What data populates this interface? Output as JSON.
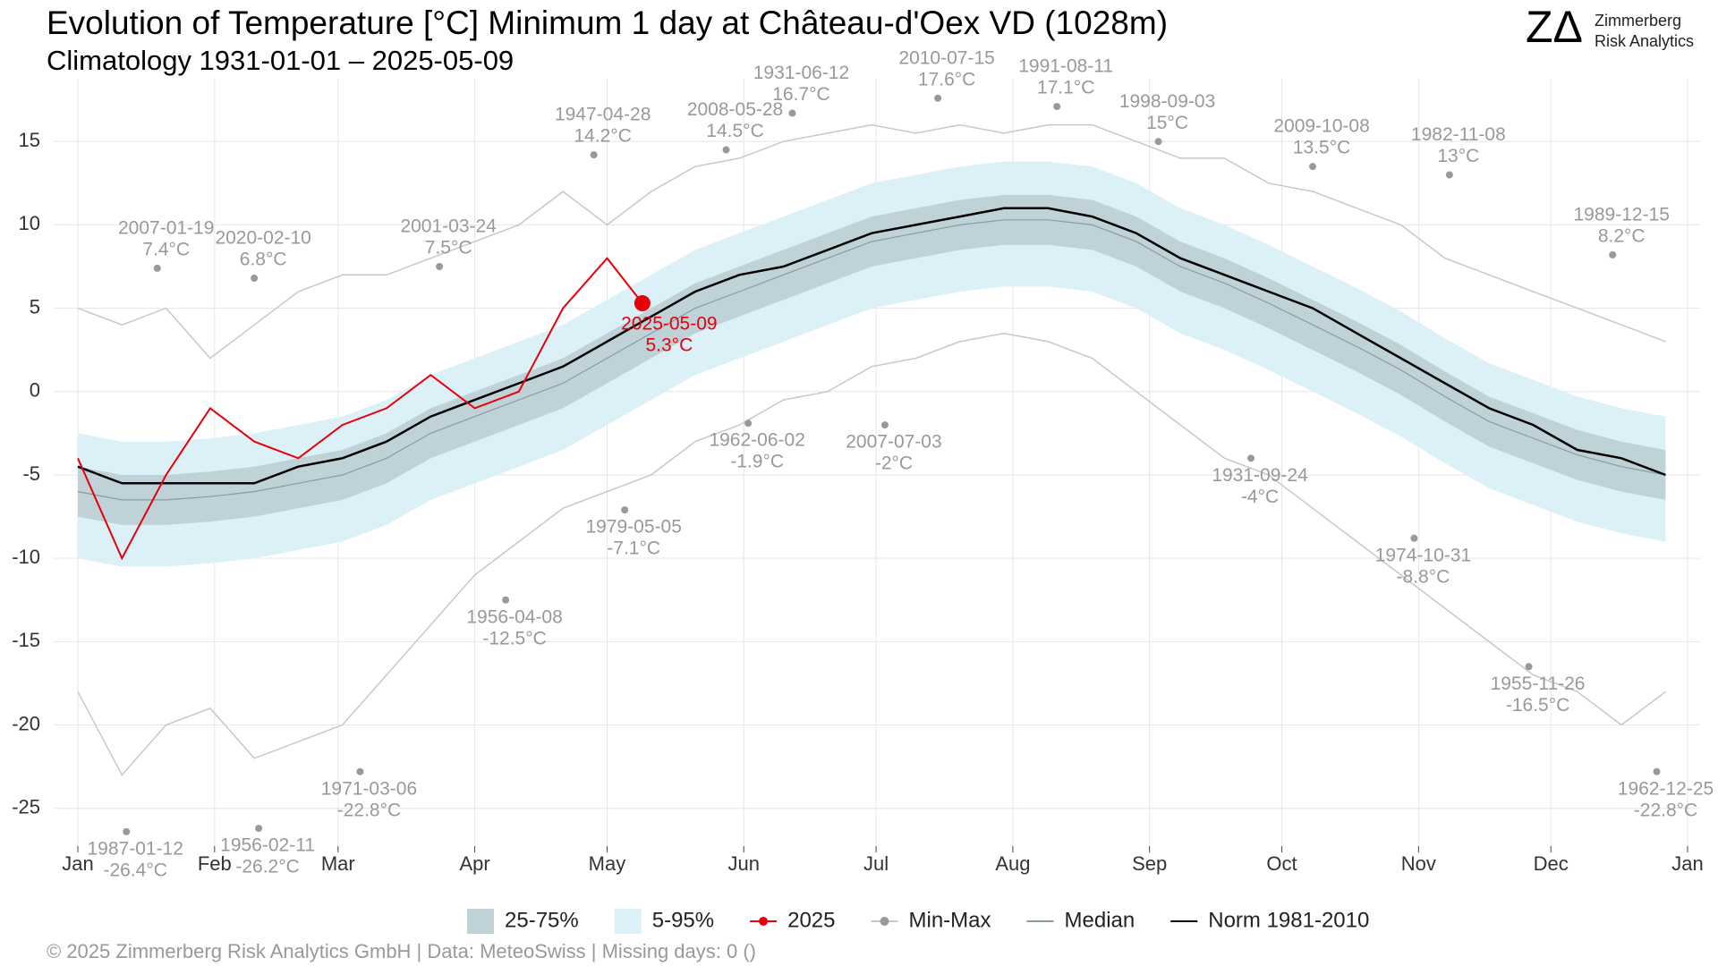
{
  "chart_data": {
    "type": "climatology",
    "title": "Evolution of Temperature [°C] Minimum 1 day at Château-d'Oex  VD (1028m)",
    "subtitle": "Climatology 1931-01-01 – 2025-05-09",
    "logo": {
      "mark": "ZΔ",
      "line1": "Zimmerberg",
      "line2": "Risk Analytics"
    },
    "footer": "©  2025 Zimmerberg Risk Analytics GmbH | Data: MeteoSwiss | Missing days: 0 ()",
    "xlim": [
      1,
      366
    ],
    "xticks": [
      {
        "value": 1,
        "label": "Jan"
      },
      {
        "value": 32,
        "label": "Feb"
      },
      {
        "value": 60,
        "label": "Mar"
      },
      {
        "value": 91,
        "label": "Apr"
      },
      {
        "value": 121,
        "label": "May"
      },
      {
        "value": 152,
        "label": "Jun"
      },
      {
        "value": 182,
        "label": "Jul"
      },
      {
        "value": 213,
        "label": "Aug"
      },
      {
        "value": 244,
        "label": "Sep"
      },
      {
        "value": 274,
        "label": "Oct"
      },
      {
        "value": 305,
        "label": "Nov"
      },
      {
        "value": 335,
        "label": "Dec"
      },
      {
        "value": 366,
        "label": "Jan"
      }
    ],
    "ylim": [
      -27,
      18.5
    ],
    "yticks": [
      15,
      10,
      5,
      0,
      -5,
      -10,
      -15,
      -20,
      -25
    ],
    "grid": true,
    "x": [
      1,
      11,
      21,
      31,
      41,
      51,
      61,
      71,
      81,
      91,
      101,
      111,
      121,
      131,
      141,
      151,
      161,
      171,
      181,
      191,
      201,
      211,
      221,
      231,
      241,
      251,
      261,
      271,
      281,
      291,
      301,
      311,
      321,
      331,
      341,
      351,
      361
    ],
    "series": [
      {
        "name": "25-75%",
        "color": "#bfd2d8",
        "lower": [
          -7.5,
          -8,
          -8,
          -7.8,
          -7.5,
          -7,
          -6.5,
          -5.5,
          -4,
          -3,
          -2,
          -1,
          0.5,
          2,
          3.5,
          4.5,
          5.5,
          6.5,
          7.5,
          8,
          8.5,
          8.8,
          8.8,
          8.5,
          7.5,
          6,
          5,
          3.8,
          2.5,
          1.2,
          -0.2,
          -1.8,
          -3.3,
          -4.3,
          -5.3,
          -6,
          -6.5
        ],
        "upper": [
          -4.5,
          -5,
          -5,
          -4.8,
          -4.5,
          -4,
          -3.5,
          -2.5,
          -1,
          0,
          1,
          2,
          3.5,
          5,
          6.5,
          7.5,
          8.5,
          9.5,
          10.5,
          11,
          11.5,
          11.8,
          11.8,
          11.5,
          10.5,
          9,
          8,
          6.8,
          5.5,
          4.2,
          2.8,
          1.2,
          -0.3,
          -1.3,
          -2.3,
          -3,
          -3.5
        ]
      },
      {
        "name": "5-95%",
        "color": "#dcf0f8",
        "lower": [
          -10,
          -10.5,
          -10.5,
          -10.3,
          -10,
          -9.5,
          -9,
          -8,
          -6.5,
          -5.5,
          -4.5,
          -3.5,
          -2,
          -0.5,
          1,
          2,
          3,
          4,
          5,
          5.5,
          6,
          6.3,
          6.3,
          6,
          5,
          3.5,
          2.5,
          1.3,
          0,
          -1.3,
          -2.7,
          -4.3,
          -5.8,
          -6.8,
          -7.8,
          -8.5,
          -9
        ],
        "upper": [
          -2.5,
          -3,
          -3,
          -2.8,
          -2.5,
          -2,
          -1.5,
          -0.5,
          1,
          2,
          3,
          4,
          5.5,
          7,
          8.5,
          9.5,
          10.5,
          11.5,
          12.5,
          13,
          13.5,
          13.8,
          13.8,
          13.5,
          12.5,
          11,
          10,
          8.8,
          7.5,
          6.2,
          4.8,
          3.2,
          1.7,
          0.7,
          -0.3,
          -1,
          -1.5
        ]
      },
      {
        "name": "2025",
        "color": "#e8000b",
        "x": [
          1,
          11,
          21,
          31,
          41,
          51,
          61,
          71,
          81,
          91,
          101,
          111,
          121,
          129
        ],
        "values": [
          -4,
          -10,
          -5,
          -1,
          -3,
          -4,
          -2,
          -1,
          1,
          -1,
          0,
          5,
          8,
          5.3
        ],
        "last": {
          "date": "2025-05-09",
          "value_label": "5.3°C"
        }
      },
      {
        "name": "Min-Max",
        "color": "#c8c8c8",
        "max": [
          5,
          4,
          5,
          2,
          4,
          6,
          7,
          7,
          8,
          9,
          10,
          12,
          10,
          12,
          13.5,
          14,
          15,
          15.5,
          16,
          15.5,
          16,
          15.5,
          16,
          16,
          15,
          14,
          14,
          12.5,
          12,
          11,
          10,
          8,
          7,
          6,
          5,
          4,
          3
        ],
        "min": [
          -18,
          -23,
          -20,
          -19,
          -22,
          -21,
          -20,
          -17,
          -14,
          -11,
          -9,
          -7,
          -6,
          -5,
          -3,
          -2,
          -0.5,
          0,
          1.5,
          2,
          3,
          3.5,
          3,
          2,
          0,
          -2,
          -4,
          -5,
          -7,
          -9,
          -11,
          -13,
          -15,
          -17,
          -18,
          -20,
          -18
        ]
      },
      {
        "name": "Median",
        "color": "#8a9aa5",
        "values": [
          -6,
          -6.5,
          -6.5,
          -6.3,
          -6,
          -5.5,
          -5,
          -4,
          -2.5,
          -1.5,
          -0.5,
          0.5,
          2,
          3.5,
          5,
          6,
          7,
          8,
          9,
          9.5,
          10,
          10.3,
          10.3,
          10,
          9,
          7.5,
          6.5,
          5.3,
          4,
          2.7,
          1.3,
          -0.3,
          -1.8,
          -2.8,
          -3.8,
          -4.5,
          -5
        ]
      },
      {
        "name": "Norm 1981-2010",
        "color": "#000000",
        "values": [
          -4.5,
          -5.5,
          -5.5,
          -5.5,
          -5.5,
          -4.5,
          -4,
          -3,
          -1.5,
          -0.5,
          0.5,
          1.5,
          3,
          4.5,
          6,
          7,
          7.5,
          8.5,
          9.5,
          10,
          10.5,
          11,
          11,
          10.5,
          9.5,
          8,
          7,
          6,
          5,
          3.5,
          2,
          0.5,
          -1,
          -2,
          -3.5,
          -4,
          -5
        ]
      }
    ],
    "max_records": [
      {
        "date": "2007-01-19",
        "x": 19,
        "value": 7.4,
        "value_label": "7.4°C"
      },
      {
        "date": "2020-02-10",
        "x": 41,
        "value": 6.8,
        "value_label": "6.8°C"
      },
      {
        "date": "2001-03-24",
        "x": 83,
        "value": 7.5,
        "value_label": "7.5°C"
      },
      {
        "date": "1947-04-28",
        "x": 118,
        "value": 14.2,
        "value_label": "14.2°C"
      },
      {
        "date": "2008-05-28",
        "x": 148,
        "value": 14.5,
        "value_label": "14.5°C"
      },
      {
        "date": "1931-06-12",
        "x": 163,
        "value": 16.7,
        "value_label": "16.7°C"
      },
      {
        "date": "2010-07-15",
        "x": 196,
        "value": 17.6,
        "value_label": "17.6°C"
      },
      {
        "date": "1991-08-11",
        "x": 223,
        "value": 17.1,
        "value_label": "17.1°C"
      },
      {
        "date": "1998-09-03",
        "x": 246,
        "value": 15,
        "value_label": "15°C"
      },
      {
        "date": "2009-10-08",
        "x": 281,
        "value": 13.5,
        "value_label": "13.5°C"
      },
      {
        "date": "1982-11-08",
        "x": 312,
        "value": 13,
        "value_label": "13°C"
      },
      {
        "date": "1989-12-15",
        "x": 349,
        "value": 8.2,
        "value_label": "8.2°C"
      }
    ],
    "min_records": [
      {
        "date": "1987-01-12",
        "x": 12,
        "value": -26.4,
        "value_label": "-26.4°C"
      },
      {
        "date": "1956-02-11",
        "x": 42,
        "value": -26.2,
        "value_label": "-26.2°C"
      },
      {
        "date": "1971-03-06",
        "x": 65,
        "value": -22.8,
        "value_label": "-22.8°C"
      },
      {
        "date": "1956-04-08",
        "x": 98,
        "value": -12.5,
        "value_label": "-12.5°C"
      },
      {
        "date": "1979-05-05",
        "x": 125,
        "value": -7.1,
        "value_label": "-7.1°C"
      },
      {
        "date": "1962-06-02",
        "x": 153,
        "value": -1.9,
        "value_label": "-1.9°C"
      },
      {
        "date": "2007-07-03",
        "x": 184,
        "value": -2,
        "value_label": "-2°C"
      },
      {
        "date": "1931-09-24",
        "x": 267,
        "value": -4,
        "value_label": "-4°C"
      },
      {
        "date": "1974-10-31",
        "x": 304,
        "value": -8.8,
        "value_label": "-8.8°C"
      },
      {
        "date": "1955-11-26",
        "x": 330,
        "value": -16.5,
        "value_label": "-16.5°C"
      },
      {
        "date": "1962-12-25",
        "x": 359,
        "value": -22.8,
        "value_label": "-22.8°C"
      }
    ]
  }
}
